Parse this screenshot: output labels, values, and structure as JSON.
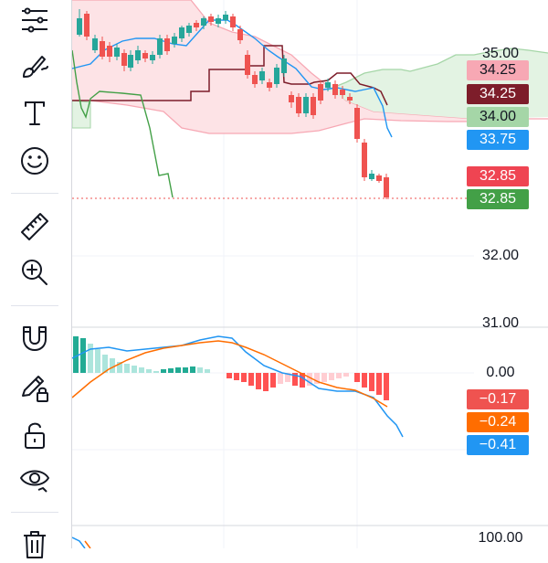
{
  "toolbar": {
    "tools": [
      {
        "name": "indicators-tool",
        "icon": "lines-settings-icon"
      },
      {
        "name": "brush-tool",
        "icon": "brush-icon"
      },
      {
        "name": "text-tool",
        "icon": "text-icon"
      },
      {
        "name": "emoji-tool",
        "icon": "smiley-icon"
      },
      {
        "name": "ruler-tool",
        "icon": "ruler-icon"
      },
      {
        "name": "zoom-tool",
        "icon": "zoom-in-icon"
      },
      {
        "name": "magnet-tool",
        "icon": "magnet-icon"
      },
      {
        "name": "lock-drawings-tool",
        "icon": "pencil-lock-icon"
      },
      {
        "name": "lock-tool",
        "icon": "unlock-icon"
      },
      {
        "name": "visibility-tool",
        "icon": "eye-icon"
      },
      {
        "name": "delete-tool",
        "icon": "trash-icon"
      }
    ]
  },
  "main_pane": {
    "axis_ticks": [
      "35.00",
      "32.00",
      "31.00"
    ],
    "price_labels": [
      {
        "text": "34.25",
        "color": "#f7a8b4",
        "text_color": "#131722"
      },
      {
        "text": "34.25",
        "color": "#7d1d2a",
        "text_color": "#ffffff"
      },
      {
        "text": "34.00",
        "color": "#a5d6a7",
        "text_color": "#131722"
      },
      {
        "text": "33.75",
        "color": "#2196f3",
        "text_color": "#ffffff"
      },
      {
        "text": "32.85",
        "color": "#ef4452",
        "text_color": "#ffffff"
      },
      {
        "text": "32.85",
        "color": "#43a047",
        "text_color": "#ffffff"
      }
    ]
  },
  "macd_pane": {
    "zero_label": "0.00",
    "value_labels": [
      {
        "text": "−0.17",
        "color": "#ef5350"
      },
      {
        "text": "−0.24",
        "color": "#ff6d00"
      },
      {
        "text": "−0.41",
        "color": "#2196f3"
      }
    ]
  },
  "bottom_pane": {
    "top_label": "100.00"
  },
  "colors": {
    "up": "#26a69a",
    "down": "#ef5350",
    "cloud_bear": "#fde3e6",
    "cloud_bull": "#e3f3e3",
    "tenkan": "#2196f3",
    "kijun": "#7d1d2a",
    "chikou": "#43a047",
    "signal": "#ff6d00"
  }
}
